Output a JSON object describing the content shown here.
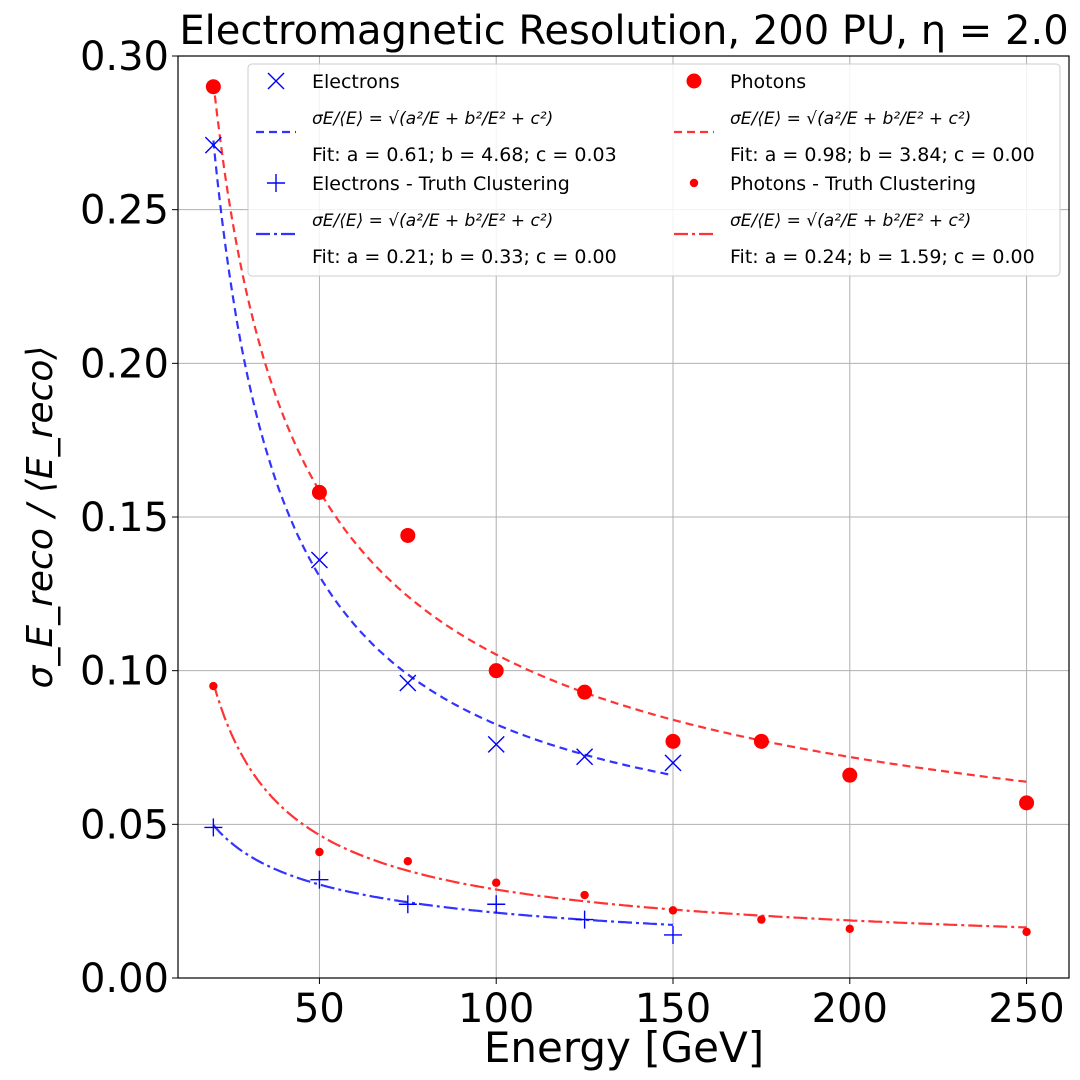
{
  "chart_data": {
    "type": "scatter",
    "title": "Electromagnetic Resolution, 200 PU, η = 2.0",
    "xlabel": "Energy [GeV]",
    "ylabel": "σ_E_reco / ⟨E_reco⟩",
    "xlim": [
      10,
      262
    ],
    "ylim": [
      0,
      0.3
    ],
    "xticks": [
      "50",
      "100",
      "150",
      "200",
      "250"
    ],
    "xtick_values": [
      50,
      100,
      150,
      200,
      250
    ],
    "yticks": [
      "0.00",
      "0.05",
      "0.10",
      "0.15",
      "0.20",
      "0.25",
      "0.30"
    ],
    "ytick_values": [
      0,
      0.05,
      0.1,
      0.15,
      0.2,
      0.25,
      0.3
    ],
    "grid": true,
    "legend_position": "top-right, two columns",
    "formula_label": "σE/⟨E⟩ = √(a²/E + b²/E² + c²)",
    "series": [
      {
        "name": "Electrons",
        "marker": "x",
        "color": "#0000ff",
        "x": [
          20,
          50,
          75,
          100,
          125,
          150
        ],
        "y": [
          0.271,
          0.136,
          0.096,
          0.076,
          0.072,
          0.07
        ],
        "fit": {
          "label": "Fit: a = 0.61; b = 4.68; c = 0.03",
          "a": 0.61,
          "b": 4.68,
          "c": 0.03,
          "style": "dashed",
          "color": "#3333ff",
          "xrange": [
            20,
            150
          ]
        }
      },
      {
        "name": "Photons",
        "marker": "circle-large",
        "color": "#ff0000",
        "x": [
          20,
          50,
          75,
          100,
          125,
          150,
          175,
          200,
          250
        ],
        "y": [
          0.29,
          0.158,
          0.144,
          0.1,
          0.093,
          0.077,
          0.077,
          0.066,
          0.057
        ],
        "fit": {
          "label": "Fit: a = 0.98; b = 3.84; c = 0.00",
          "a": 0.98,
          "b": 3.84,
          "c": 0.0,
          "style": "dashed",
          "color": "#ff3333",
          "xrange": [
            20,
            250
          ]
        }
      },
      {
        "name": "Electrons - Truth Clustering",
        "marker": "plus",
        "color": "#0000ff",
        "x": [
          20,
          50,
          75,
          100,
          125,
          150
        ],
        "y": [
          0.049,
          0.032,
          0.024,
          0.024,
          0.019,
          0.014
        ],
        "fit": {
          "label": "Fit: a = 0.21; b = 0.33; c = 0.00",
          "a": 0.21,
          "b": 0.33,
          "c": 0.0,
          "style": "dashdot",
          "color": "#3333ff",
          "xrange": [
            20,
            150
          ]
        }
      },
      {
        "name": "Photons - Truth Clustering",
        "marker": "circle-small",
        "color": "#ff0000",
        "x": [
          20,
          50,
          75,
          100,
          125,
          150,
          175,
          200,
          250
        ],
        "y": [
          0.095,
          0.041,
          0.038,
          0.031,
          0.027,
          0.022,
          0.019,
          0.016,
          0.015
        ],
        "fit": {
          "label": "Fit: a = 0.24; b = 1.59; c = 0.00",
          "a": 0.24,
          "b": 1.59,
          "c": 0.0,
          "style": "dashdot",
          "color": "#ff3333",
          "xrange": [
            20,
            250
          ]
        }
      }
    ]
  }
}
